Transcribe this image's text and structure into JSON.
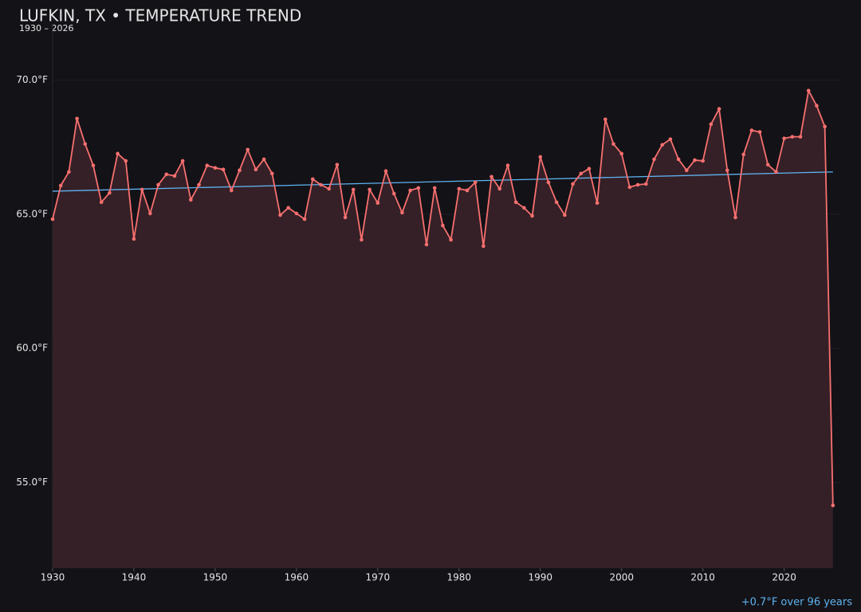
{
  "chart_data": {
    "type": "line",
    "title": "LUFKIN, TX • TEMPERATURE TREND",
    "subtitle": "1930 – 2026",
    "annotation": "+0.7°F over 96 years",
    "x": [
      1930,
      1931,
      1932,
      1933,
      1934,
      1935,
      1936,
      1937,
      1938,
      1939,
      1940,
      1941,
      1942,
      1943,
      1944,
      1945,
      1946,
      1947,
      1948,
      1949,
      1950,
      1951,
      1952,
      1953,
      1954,
      1955,
      1956,
      1957,
      1958,
      1959,
      1960,
      1961,
      1962,
      1963,
      1964,
      1965,
      1966,
      1967,
      1968,
      1969,
      1970,
      1971,
      1972,
      1973,
      1974,
      1975,
      1976,
      1977,
      1978,
      1979,
      1980,
      1981,
      1982,
      1983,
      1984,
      1985,
      1986,
      1987,
      1988,
      1989,
      1990,
      1991,
      1992,
      1993,
      1994,
      1995,
      1996,
      1997,
      1998,
      1999,
      2000,
      2001,
      2002,
      2003,
      2004,
      2005,
      2006,
      2007,
      2008,
      2009,
      2010,
      2011,
      2012,
      2013,
      2014,
      2015,
      2016,
      2017,
      2018,
      2019,
      2020,
      2021,
      2022,
      2023,
      2024,
      2025,
      2026
    ],
    "series": [
      {
        "name": "Temperature",
        "color": "#f7706f",
        "fill": "#352027",
        "values": [
          64.82,
          66.07,
          66.58,
          68.57,
          67.62,
          66.82,
          65.45,
          65.8,
          67.26,
          66.99,
          64.08,
          65.92,
          65.03,
          66.1,
          66.49,
          66.43,
          66.99,
          65.54,
          66.1,
          66.82,
          66.73,
          66.67,
          65.89,
          66.64,
          67.41,
          66.67,
          67.05,
          66.52,
          64.97,
          65.24,
          65.03,
          64.82,
          66.31,
          66.1,
          65.95,
          66.85,
          64.88,
          65.92,
          64.05,
          65.92,
          65.42,
          66.61,
          65.77,
          65.06,
          65.89,
          65.98,
          63.87,
          65.98,
          64.58,
          64.05,
          65.95,
          65.89,
          66.19,
          63.81,
          66.4,
          65.95,
          66.82,
          65.45,
          65.24,
          64.94,
          67.14,
          66.19,
          65.45,
          64.97,
          66.13,
          66.52,
          66.7,
          65.42,
          68.54,
          67.62,
          67.26,
          66.01,
          66.1,
          66.13,
          67.05,
          67.59,
          67.8,
          67.05,
          66.64,
          67.02,
          66.99,
          68.36,
          68.93,
          66.64,
          64.88,
          67.23,
          68.13,
          68.07,
          66.85,
          66.58,
          67.83,
          67.89,
          67.89,
          69.61,
          69.05,
          68.27,
          54.14
        ]
      }
    ],
    "trend": {
      "color": "#5fb3f0",
      "x": [
        1930,
        2026
      ],
      "values": [
        65.86,
        66.58
      ]
    },
    "xlim": [
      1930,
      2027
    ],
    "ylim": [
      51.8,
      72.1
    ],
    "xticks": [
      1930,
      1940,
      1950,
      1960,
      1970,
      1980,
      1990,
      2000,
      2010,
      2020
    ],
    "yticks": [
      {
        "value": 55,
        "label": "55.0°F"
      },
      {
        "value": 60,
        "label": "60.0°F"
      },
      {
        "value": 65,
        "label": "65.0°F"
      },
      {
        "value": 70,
        "label": "70.0°F"
      }
    ],
    "grid": true
  }
}
